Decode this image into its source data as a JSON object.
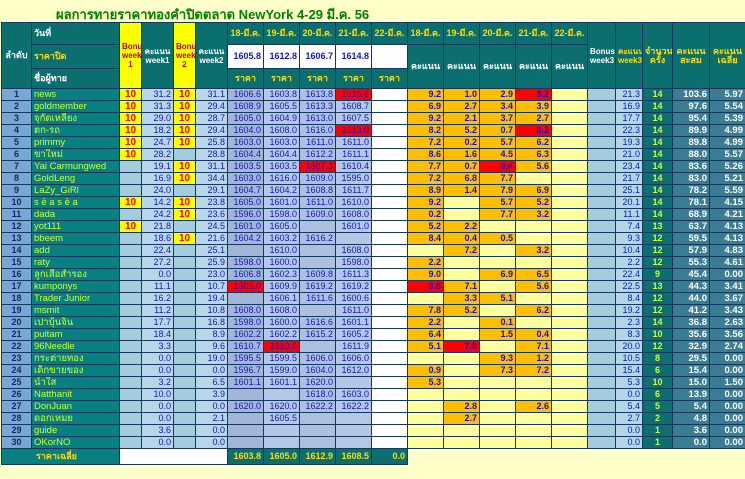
{
  "title": "ผลการทายราคาทองคำปิดตลาด NewYork 4-29 มี.ค. 56",
  "colors": {
    "page_background": "#FFFFC9",
    "header_teal": "#0B6F6F",
    "name_teal": "#068080",
    "rank_blue": "#79A7D4",
    "bonus_yellow": "#FFFF00",
    "score_orange": "#FFBF00",
    "best_red": "#FF0000",
    "summary_blue": "#3B7E93",
    "title_green": "#008000",
    "number_blue": "#1414CC",
    "name_text": "#CCFF33"
  },
  "header": {
    "rank": "ลำดับ",
    "date_label": "วันที่",
    "close_label": "ราคาปิด",
    "name_label": "ชื่อผู้ทาย",
    "bonus_week1": "Bonus week 1",
    "score_week1": "คะแนน week1",
    "bonus_week2": "Bonus week 2",
    "score_week2": "คะแนน week2",
    "price_label": "ราคา",
    "score_label": "คะแนน",
    "bonus_week3": "Bonus week3",
    "score_week3": "คะแนน week3",
    "count_label": "จำนวน ครั้ง",
    "total_label": "คะแนน สะสม",
    "avg_label": "คะแนน เฉลี่ย",
    "dates": [
      "18-มี.ค.",
      "19-มี.ค.",
      "20-มี.ค.",
      "21-มี.ค.",
      "22-มี.ค."
    ],
    "closes": [
      "1605.8",
      "1612.8",
      "1606.7",
      "1614.8",
      ""
    ]
  },
  "footer": {
    "label": "ราคาเฉลี่ย",
    "averages": [
      "1603.8",
      "1605.0",
      "1612.9",
      "1608.5",
      "0.0"
    ]
  },
  "rows": [
    {
      "rank": "1",
      "name": "news",
      "bonus1": "10",
      "week1": "31.2",
      "bonus2": "10",
      "week2": "31.1",
      "prices": [
        "1606.6",
        "1603.8",
        "1613.8",
        "1616.6",
        ""
      ],
      "scores": [
        "9.2",
        "1.0",
        "2.9",
        "8.2",
        ""
      ],
      "red_price": 3,
      "red_score": 3,
      "week3": "21.3",
      "count": "14",
      "total": "103.6",
      "avg": "5.97"
    },
    {
      "rank": "2",
      "name": "goldmember",
      "bonus1": "10",
      "week1": "31.3",
      "bonus2": "10",
      "week2": "29.4",
      "prices": [
        "1608.9",
        "1605.5",
        "1613.3",
        "1608.7",
        ""
      ],
      "scores": [
        "6.9",
        "2.7",
        "3.4",
        "3.9",
        ""
      ],
      "red_price": -1,
      "red_score": -1,
      "week3": "16.9",
      "count": "14",
      "total": "97.6",
      "avg": "5.54"
    },
    {
      "rank": "3",
      "name": "จุกัดเหลียง",
      "bonus1": "10",
      "week1": "29.0",
      "bonus2": "10",
      "week2": "28.7",
      "prices": [
        "1605.0",
        "1604.9",
        "1613.0",
        "1607.5",
        ""
      ],
      "scores": [
        "9.2",
        "2.1",
        "3.7",
        "2.7",
        ""
      ],
      "red_price": -1,
      "red_score": -1,
      "week3": "17.7",
      "count": "14",
      "total": "95.4",
      "avg": "5.39"
    },
    {
      "rank": "4",
      "name": "ตก-รถ",
      "bonus1": "10",
      "week1": "18.2",
      "bonus2": "10",
      "week2": "29.4",
      "prices": [
        "1604.0",
        "1608.0",
        "1616.0",
        "1613.0",
        ""
      ],
      "scores": [
        "8.2",
        "5.2",
        "0.7",
        "8.2",
        ""
      ],
      "red_price": 3,
      "red_score": 3,
      "week3": "22.3",
      "count": "14",
      "total": "89.9",
      "avg": "4.99"
    },
    {
      "rank": "5",
      "name": "primmy",
      "bonus1": "10",
      "week1": "24.7",
      "bonus2": "10",
      "week2": "25.8",
      "prices": [
        "1603.0",
        "1603.0",
        "1611.0",
        "1611.0",
        ""
      ],
      "scores": [
        "7.2",
        "0.2",
        "5.7",
        "6.2",
        ""
      ],
      "red_price": -1,
      "red_score": -1,
      "week3": "19.3",
      "count": "14",
      "total": "89.8",
      "avg": "4.99"
    },
    {
      "rank": "6",
      "name": "ขาใหม่",
      "bonus1": "10",
      "week1": "28.2",
      "bonus2": "",
      "week2": "28.8",
      "prices": [
        "1604.4",
        "1604.4",
        "1612.2",
        "1611.1",
        ""
      ],
      "scores": [
        "8.6",
        "1.6",
        "4.5",
        "6.3",
        ""
      ],
      "red_price": -1,
      "red_score": -1,
      "week3": "21.0",
      "count": "14",
      "total": "88.0",
      "avg": "5.57"
    },
    {
      "rank": "7",
      "name": "Yai Carmungwed",
      "bonus1": "",
      "week1": "19.1",
      "bonus2": "10",
      "week2": "31.1",
      "prices": [
        "1603.5",
        "1603.5",
        "1607.3",
        "1610.4",
        ""
      ],
      "scores": [
        "7.7",
        "0.7",
        "9.4",
        "5.6",
        ""
      ],
      "red_price": 2,
      "red_score": 2,
      "week3": "23.4",
      "count": "14",
      "total": "83.6",
      "avg": "5.26"
    },
    {
      "rank": "8",
      "name": "GoldLeng",
      "bonus1": "",
      "week1": "16.9",
      "bonus2": "10",
      "week2": "34.4",
      "prices": [
        "1603.0",
        "1616.0",
        "1609.0",
        "1595.0",
        ""
      ],
      "scores": [
        "7.2",
        "6.8",
        "7.7",
        "",
        ""
      ],
      "red_price": -1,
      "red_score": -1,
      "week3": "21.7",
      "count": "14",
      "total": "83.0",
      "avg": "5.21"
    },
    {
      "rank": "9",
      "name": "LaZy_GiRl",
      "bonus1": "",
      "week1": "24.0",
      "bonus2": "",
      "week2": "29.1",
      "prices": [
        "1604.7",
        "1604.2",
        "1608.8",
        "1611.7",
        ""
      ],
      "scores": [
        "8.9",
        "1.4",
        "7.9",
        "6.9",
        ""
      ],
      "red_price": -1,
      "red_score": -1,
      "week3": "25.1",
      "count": "14",
      "total": "78.2",
      "avg": "5.59"
    },
    {
      "rank": "10",
      "name": "s ē a s ē a",
      "bonus1": "10",
      "week1": "14.2",
      "bonus2": "10",
      "week2": "23.8",
      "prices": [
        "1605.0",
        "1601.0",
        "1611.0",
        "1610.0",
        ""
      ],
      "scores": [
        "9.2",
        "",
        "5.7",
        "5.2",
        ""
      ],
      "red_price": -1,
      "red_score": -1,
      "week3": "20.1",
      "count": "14",
      "total": "78.1",
      "avg": "4.15"
    },
    {
      "rank": "11",
      "name": "dada",
      "bonus1": "",
      "week1": "24.2",
      "bonus2": "10",
      "week2": "23.6",
      "prices": [
        "1596.0",
        "1598.0",
        "1609.0",
        "1608.0",
        ""
      ],
      "scores": [
        "0.2",
        "",
        "7.7",
        "3.2",
        ""
      ],
      "red_price": -1,
      "red_score": -1,
      "week3": "11.1",
      "count": "14",
      "total": "68.9",
      "avg": "4.21"
    },
    {
      "rank": "12",
      "name": "yot111",
      "bonus1": "10",
      "week1": "21.8",
      "bonus2": "",
      "week2": "24.5",
      "prices": [
        "1601.0",
        "1605.0",
        "",
        "1601.0",
        ""
      ],
      "scores": [
        "5.2",
        "2.2",
        "",
        "",
        ""
      ],
      "red_price": -1,
      "red_score": -1,
      "week3": "7.4",
      "count": "13",
      "total": "63.7",
      "avg": "4.13"
    },
    {
      "rank": "13",
      "name": "bbeem",
      "bonus1": "",
      "week1": "18.6",
      "bonus2": "10",
      "week2": "21.6",
      "prices": [
        "1604.2",
        "1603.2",
        "1616.2",
        "",
        ""
      ],
      "scores": [
        "8.4",
        "0.4",
        "0.5",
        "",
        ""
      ],
      "red_price": -1,
      "red_score": -1,
      "week3": "9.3",
      "count": "12",
      "total": "59.5",
      "avg": "4.13"
    },
    {
      "rank": "14",
      "name": "add",
      "bonus1": "",
      "week1": "22.4",
      "bonus2": "",
      "week2": "25.1",
      "prices": [
        "",
        "1610.0",
        "",
        "1608.0",
        ""
      ],
      "scores": [
        "",
        "7.2",
        "",
        "3.2",
        ""
      ],
      "red_price": -1,
      "red_score": -1,
      "week3": "10.4",
      "count": "12",
      "total": "57.9",
      "avg": "4.83"
    },
    {
      "rank": "15",
      "name": "raty",
      "bonus1": "",
      "week1": "27.2",
      "bonus2": "",
      "week2": "25.9",
      "prices": [
        "1598.0",
        "1600.0",
        "",
        "1598.0",
        ""
      ],
      "scores": [
        "2.2",
        "",
        "",
        "",
        ""
      ],
      "red_price": -1,
      "red_score": -1,
      "week3": "2.2",
      "count": "12",
      "total": "55.3",
      "avg": "4.61"
    },
    {
      "rank": "16",
      "name": "ลูกเสือสำรอง",
      "bonus1": "",
      "week1": "0.0",
      "bonus2": "",
      "week2": "23.0",
      "prices": [
        "1606.8",
        "1602.3",
        "1609.8",
        "1611.3",
        ""
      ],
      "scores": [
        "9.0",
        "",
        "6.9",
        "6.5",
        ""
      ],
      "red_price": -1,
      "red_score": -1,
      "week3": "22.4",
      "count": "9",
      "total": "45.4",
      "avg": "0.00"
    },
    {
      "rank": "17",
      "name": "kumponys",
      "bonus1": "",
      "week1": "11.1",
      "bonus2": "",
      "week2": "10.7",
      "prices": [
        "1606.0",
        "1609.9",
        "1619.2",
        "1619.2",
        ""
      ],
      "scores": [
        "9.8",
        "7.1",
        "",
        "5.6",
        ""
      ],
      "red_price": 0,
      "red_score": 0,
      "week3": "22.5",
      "count": "13",
      "total": "44.3",
      "avg": "3.41"
    },
    {
      "rank": "18",
      "name": "Trader Junior",
      "bonus1": "",
      "week1": "16.2",
      "bonus2": "",
      "week2": "19.4",
      "prices": [
        "",
        "1606.1",
        "1611.6",
        "1600.6",
        ""
      ],
      "scores": [
        "",
        "3.3",
        "5.1",
        "",
        ""
      ],
      "red_price": -1,
      "red_score": -1,
      "week3": "8.4",
      "count": "12",
      "total": "44.0",
      "avg": "3.67"
    },
    {
      "rank": "19",
      "name": "msmit",
      "bonus1": "",
      "week1": "11.2",
      "bonus2": "",
      "week2": "10.8",
      "prices": [
        "1608.0",
        "1608.0",
        "",
        "1611.0",
        ""
      ],
      "scores": [
        "7.8",
        "5.2",
        "",
        "6.2",
        ""
      ],
      "red_price": -1,
      "red_score": -1,
      "week3": "19.2",
      "count": "12",
      "total": "41.2",
      "avg": "3.43"
    },
    {
      "rank": "20",
      "name": "เปาบุ้นจิ้น",
      "bonus1": "",
      "week1": "17.7",
      "bonus2": "",
      "week2": "16.8",
      "prices": [
        "1598.0",
        "1600.0",
        "1616.6",
        "1601.1",
        ""
      ],
      "scores": [
        "2.2",
        "",
        "0.1",
        "",
        ""
      ],
      "red_price": -1,
      "red_score": -1,
      "week3": "2.3",
      "count": "14",
      "total": "36.8",
      "avg": "2.63"
    },
    {
      "rank": "21",
      "name": "puitam",
      "bonus1": "",
      "week1": "18.4",
      "bonus2": "",
      "week2": "8.9",
      "prices": [
        "1602.2",
        "1602.2",
        "1615.2",
        "1605.2",
        ""
      ],
      "scores": [
        "6.4",
        "",
        "1.5",
        "0.4",
        ""
      ],
      "red_price": -1,
      "red_score": -1,
      "week3": "8.3",
      "count": "10",
      "total": "35.6",
      "avg": "3.56"
    },
    {
      "rank": "22",
      "name": "96Needle",
      "bonus1": "",
      "week1": "3.3",
      "bonus2": "",
      "week2": "9.6",
      "prices": [
        "1610.7",
        "1610.6",
        "",
        "1611.9",
        ""
      ],
      "scores": [
        "5.1",
        "7.8",
        "",
        "7.1",
        ""
      ],
      "red_price": 1,
      "red_score": 1,
      "week3": "20.0",
      "count": "12",
      "total": "32.9",
      "avg": "2.74"
    },
    {
      "rank": "23",
      "name": "กระต่ายทอง",
      "bonus1": "",
      "week1": "0.0",
      "bonus2": "",
      "week2": "19.0",
      "prices": [
        "1595.5",
        "1599.5",
        "1606.0",
        "1606.0",
        ""
      ],
      "scores": [
        "",
        "",
        "9.3",
        "1.2",
        ""
      ],
      "red_price": -1,
      "red_score": -1,
      "week3": "10.5",
      "count": "8",
      "total": "29.5",
      "avg": "0.00"
    },
    {
      "rank": "24",
      "name": "เด็กขายของ",
      "bonus1": "",
      "week1": "0.0",
      "bonus2": "",
      "week2": "0.0",
      "prices": [
        "1596.7",
        "1599.0",
        "1604.0",
        "1612.0",
        ""
      ],
      "scores": [
        "0.9",
        "",
        "7.3",
        "7.2",
        ""
      ],
      "red_price": -1,
      "red_score": -1,
      "week3": "15.4",
      "count": "6",
      "total": "15.4",
      "avg": "0.00"
    },
    {
      "rank": "25",
      "name": "น้ำใส",
      "bonus1": "",
      "week1": "3.2",
      "bonus2": "",
      "week2": "6.5",
      "prices": [
        "1601.1",
        "1601.1",
        "1620.0",
        "",
        ""
      ],
      "scores": [
        "5.3",
        "",
        "",
        "",
        ""
      ],
      "red_price": -1,
      "red_score": -1,
      "week3": "5.3",
      "count": "10",
      "total": "15.0",
      "avg": "1.50"
    },
    {
      "rank": "26",
      "name": "Natthanit",
      "bonus1": "",
      "week1": "10.0",
      "bonus2": "",
      "week2": "3.9",
      "prices": [
        "",
        "",
        "1618.0",
        "1603.0",
        ""
      ],
      "scores": [
        "",
        "",
        "",
        "",
        ""
      ],
      "red_price": -1,
      "red_score": -1,
      "week3": "0.0",
      "count": "6",
      "total": "13.9",
      "avg": "0.00"
    },
    {
      "rank": "27",
      "name": "DonJuan",
      "bonus1": "",
      "week1": "0.0",
      "bonus2": "",
      "week2": "0.0",
      "prices": [
        "1620.0",
        "1620.0",
        "1622.2",
        "1622.2",
        ""
      ],
      "scores": [
        "",
        "2.8",
        "",
        "2.6",
        ""
      ],
      "red_price": -1,
      "red_score": -1,
      "week3": "5.4",
      "count": "5",
      "total": "5.4",
      "avg": "0.00"
    },
    {
      "rank": "28",
      "name": "ดอกเหมย",
      "bonus1": "",
      "week1": "0.0",
      "bonus2": "",
      "week2": "2.1",
      "prices": [
        "",
        "1605.5",
        "",
        "",
        ""
      ],
      "scores": [
        "",
        "2.7",
        "",
        "",
        ""
      ],
      "red_price": -1,
      "red_score": -1,
      "week3": "2.7",
      "count": "2",
      "total": "4.8",
      "avg": "0.00"
    },
    {
      "rank": "29",
      "name": "guide",
      "bonus1": "",
      "week1": "3.6",
      "bonus2": "",
      "week2": "0.0",
      "prices": [
        "",
        "",
        "",
        "",
        ""
      ],
      "scores": [
        "",
        "",
        "",
        "",
        ""
      ],
      "red_price": -1,
      "red_score": -1,
      "week3": "0.0",
      "count": "1",
      "total": "3.6",
      "avg": "0.00"
    },
    {
      "rank": "30",
      "name": "OKorNO",
      "bonus1": "",
      "week1": "0.0",
      "bonus2": "",
      "week2": "0.0",
      "prices": [
        "",
        "",
        "",
        "",
        ""
      ],
      "scores": [
        "",
        "",
        "",
        "",
        ""
      ],
      "red_price": -1,
      "red_score": -1,
      "week3": "0.0",
      "count": "1",
      "total": "0.0",
      "avg": "0.00"
    }
  ]
}
